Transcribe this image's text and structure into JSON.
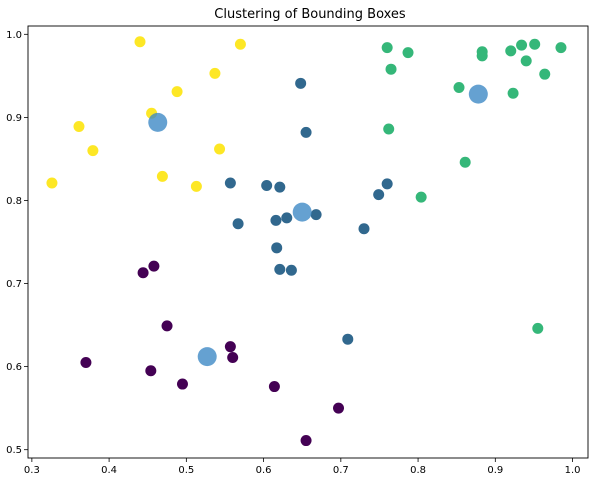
{
  "chart_data": {
    "type": "scatter",
    "title": "Clustering of Bounding Boxes",
    "xlabel": "",
    "ylabel": "",
    "xlim": [
      0.295,
      1.02
    ],
    "ylim": [
      0.49,
      1.01
    ],
    "xticks": [
      0.3,
      0.4,
      0.5,
      0.6,
      0.7,
      0.8,
      0.9,
      1.0
    ],
    "yticks": [
      0.5,
      0.6,
      0.7,
      0.8,
      0.9,
      1.0
    ],
    "xtick_labels": [
      "0.3",
      "0.4",
      "0.5",
      "0.6",
      "0.7",
      "0.8",
      "0.9",
      "1.0"
    ],
    "ytick_labels": [
      "0.5",
      "0.6",
      "0.7",
      "0.8",
      "0.9",
      "1.0"
    ],
    "grid": false,
    "legend": "none",
    "clusters": [
      {
        "color": "#440154",
        "points": [
          [
            0.37,
            0.605
          ],
          [
            0.444,
            0.713
          ],
          [
            0.458,
            0.721
          ],
          [
            0.454,
            0.595
          ],
          [
            0.475,
            0.649
          ],
          [
            0.495,
            0.579
          ],
          [
            0.557,
            0.624
          ],
          [
            0.56,
            0.611
          ],
          [
            0.614,
            0.576
          ],
          [
            0.655,
            0.511
          ],
          [
            0.697,
            0.55
          ]
        ]
      },
      {
        "color": "#31688e",
        "points": [
          [
            0.648,
            0.941
          ],
          [
            0.655,
            0.882
          ],
          [
            0.557,
            0.821
          ],
          [
            0.604,
            0.818
          ],
          [
            0.621,
            0.816
          ],
          [
            0.616,
            0.776
          ],
          [
            0.63,
            0.779
          ],
          [
            0.567,
            0.772
          ],
          [
            0.668,
            0.783
          ],
          [
            0.617,
            0.743
          ],
          [
            0.621,
            0.717
          ],
          [
            0.636,
            0.716
          ],
          [
            0.73,
            0.766
          ],
          [
            0.749,
            0.807
          ],
          [
            0.76,
            0.82
          ],
          [
            0.709,
            0.633
          ]
        ]
      },
      {
        "color": "#35b779",
        "points": [
          [
            0.76,
            0.984
          ],
          [
            0.787,
            0.978
          ],
          [
            0.765,
            0.958
          ],
          [
            0.762,
            0.886
          ],
          [
            0.804,
            0.804
          ],
          [
            0.853,
            0.936
          ],
          [
            0.861,
            0.846
          ],
          [
            0.883,
            0.979
          ],
          [
            0.883,
            0.974
          ],
          [
            0.92,
            0.98
          ],
          [
            0.934,
            0.987
          ],
          [
            0.951,
            0.988
          ],
          [
            0.985,
            0.984
          ],
          [
            0.94,
            0.968
          ],
          [
            0.964,
            0.952
          ],
          [
            0.923,
            0.929
          ],
          [
            0.955,
            0.646
          ]
        ]
      },
      {
        "color": "#fde725",
        "points": [
          [
            0.44,
            0.991
          ],
          [
            0.57,
            0.988
          ],
          [
            0.537,
            0.953
          ],
          [
            0.488,
            0.931
          ],
          [
            0.455,
            0.905
          ],
          [
            0.361,
            0.889
          ],
          [
            0.379,
            0.86
          ],
          [
            0.543,
            0.862
          ],
          [
            0.469,
            0.829
          ],
          [
            0.326,
            0.821
          ],
          [
            0.513,
            0.817
          ]
        ]
      }
    ],
    "centroids": {
      "color": "#3f89c6",
      "points": [
        [
          0.463,
          0.894
        ],
        [
          0.878,
          0.928
        ],
        [
          0.65,
          0.786
        ],
        [
          0.527,
          0.612
        ]
      ]
    }
  }
}
